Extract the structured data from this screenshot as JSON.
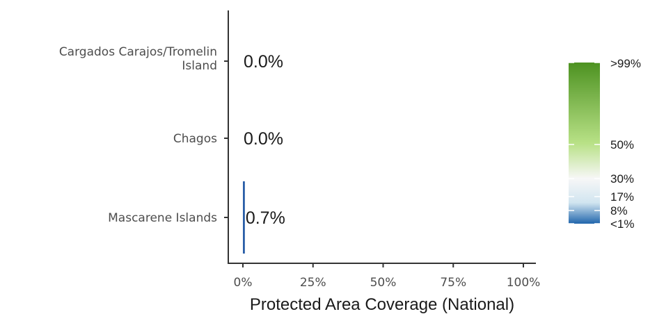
{
  "chart_data": {
    "type": "bar",
    "orientation": "horizontal",
    "categories": [
      [
        "Cargados Carajos/Tromelin",
        "Island"
      ],
      [
        "Chagos"
      ],
      [
        "Mascarene Islands"
      ]
    ],
    "values": [
      0.0,
      0.0,
      0.7
    ],
    "data_labels": [
      "0.0%",
      "0.0%",
      "0.7%"
    ],
    "bar_colors": [
      "#2166ac",
      "#2166ac",
      "#2b5fa8"
    ],
    "xlabel": "Protected Area Coverage (National)",
    "ylabel": "",
    "xlim": [
      0,
      100
    ],
    "x_ticks": [
      0,
      25,
      50,
      75,
      100
    ],
    "x_tick_labels": [
      "0%",
      "25%",
      "50%",
      "75%",
      "100%"
    ],
    "grid": false,
    "legend": {
      "placement": "right",
      "type": "colorbar",
      "labels": [
        ">99%",
        "50%",
        "30%",
        "17%",
        "8%",
        "<1%"
      ],
      "label_values": [
        100,
        50,
        30,
        17,
        8,
        0.5
      ],
      "colors": {
        "top": "#4d9221",
        "mid_high": "#b8e186",
        "middle": "#f7f7f7",
        "low": "#d1e5f0",
        "bottom": "#2166ac"
      }
    }
  }
}
